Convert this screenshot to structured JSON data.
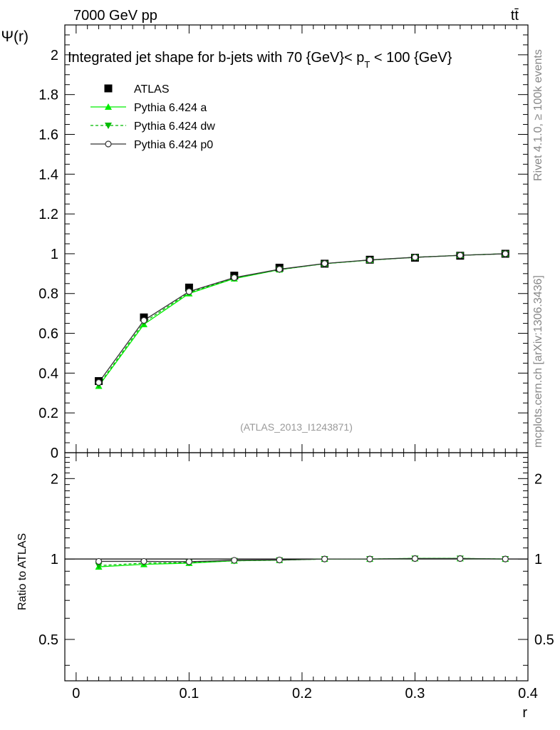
{
  "header": {
    "energy_label": "7000 GeV pp",
    "process_label": "tt̄",
    "side_top": "Rivet 4.1.0, ≥ 100k events",
    "side_bottom": "mcplots.cern.ch [arXiv:1306.3436]"
  },
  "chart_data": [
    {
      "type": "line",
      "panel": "main",
      "title": "Integrated jet shape for b-jets with 70 {GeV}< p_T < 100 {GeV}",
      "title_parts": {
        "pre": "Integrated jet shape for b-jets with 70 {GeV}< p",
        "sub": "T",
        "post": " < 100 {GeV}"
      },
      "ylabel": "Ψ(r)",
      "xlabel": "",
      "watermark": "(ATLAS_2013_I1243871)",
      "xlim": [
        -0.01,
        0.4
      ],
      "ylim": [
        0,
        2.15
      ],
      "y_ticks": [
        0,
        0.2,
        0.4,
        0.6,
        0.8,
        1,
        1.2,
        1.4,
        1.6,
        1.8,
        2
      ],
      "y_tick_labels": [
        "0",
        "0.2",
        "0.4",
        "0.6",
        "0.8",
        "1",
        "1.2",
        "1.4",
        "1.6",
        "1.8",
        "2"
      ],
      "x": [
        0.02,
        0.06,
        0.1,
        0.14,
        0.18,
        0.22,
        0.26,
        0.3,
        0.34,
        0.38
      ],
      "series": [
        {
          "name": "ATLAS",
          "color": "#000000",
          "marker": "square",
          "style": "points",
          "values": [
            0.36,
            0.68,
            0.83,
            0.89,
            0.93,
            0.95,
            0.97,
            0.98,
            0.99,
            1.0
          ]
        },
        {
          "name": "Pythia 6.424 a",
          "color": "#00ee00",
          "marker": "triangle-up",
          "style": "solid",
          "values": [
            0.335,
            0.645,
            0.8,
            0.875,
            0.92,
            0.95,
            0.968,
            0.982,
            0.992,
            1.0
          ]
        },
        {
          "name": "Pythia 6.424 dw",
          "color": "#00bb00",
          "marker": "triangle-down",
          "style": "dashed",
          "values": [
            0.34,
            0.655,
            0.805,
            0.877,
            0.92,
            0.95,
            0.968,
            0.982,
            0.992,
            1.0
          ]
        },
        {
          "name": "Pythia 6.424 p0",
          "color": "#333333",
          "marker": "circle-open",
          "style": "solid",
          "values": [
            0.353,
            0.665,
            0.81,
            0.88,
            0.922,
            0.951,
            0.969,
            0.982,
            0.992,
            1.0
          ]
        }
      ],
      "legend": "top-left"
    },
    {
      "type": "line",
      "panel": "ratio",
      "ylabel": "Ratio to ATLAS",
      "xlabel": "r",
      "xlim": [
        -0.01,
        0.4
      ],
      "ylim": [
        0.35,
        2.5
      ],
      "y_ticks": [
        0.5,
        1,
        2
      ],
      "y_tick_labels": [
        "0.5",
        "1",
        "2"
      ],
      "x_ticks": [
        0,
        0.1,
        0.2,
        0.3,
        0.4
      ],
      "x_tick_labels": [
        "0",
        "0.1",
        "0.2",
        "0.3",
        "0.4"
      ],
      "x": [
        0.02,
        0.06,
        0.1,
        0.14,
        0.18,
        0.22,
        0.26,
        0.3,
        0.34,
        0.38
      ],
      "series": [
        {
          "name": "Pythia 6.424 a",
          "color": "#00ee00",
          "marker": "triangle-up",
          "style": "solid",
          "values": [
            0.935,
            0.955,
            0.965,
            0.985,
            0.99,
            1.0,
            1.0,
            1.005,
            1.005,
            1.0
          ]
        },
        {
          "name": "Pythia 6.424 dw",
          "color": "#00bb00",
          "marker": "triangle-down",
          "style": "dashed",
          "values": [
            0.945,
            0.965,
            0.97,
            0.985,
            0.99,
            1.0,
            1.0,
            1.005,
            1.005,
            1.0
          ]
        },
        {
          "name": "Pythia 6.424 p0",
          "color": "#333333",
          "marker": "circle-open",
          "style": "solid",
          "values": [
            0.98,
            0.98,
            0.977,
            0.989,
            0.992,
            1.0,
            1.0,
            1.004,
            1.004,
            1.0
          ]
        }
      ]
    }
  ]
}
